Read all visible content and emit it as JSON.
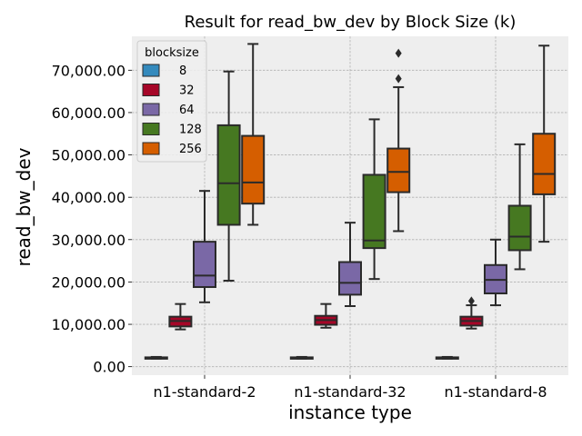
{
  "chart_data": {
    "type": "box",
    "title": "Result for read_bw_dev by Block Size (k)",
    "xlabel": "instance type",
    "ylabel": "read_bw_dev",
    "categories": [
      "n1-standard-2",
      "n1-standard-32",
      "n1-standard-8"
    ],
    "ylim": [
      -2000,
      78000
    ],
    "yticks": [
      0,
      10000,
      20000,
      30000,
      40000,
      50000,
      60000,
      70000
    ],
    "ytick_labels": [
      "0.00",
      "10,000.00",
      "20,000.00",
      "30,000.00",
      "40,000.00",
      "50,000.00",
      "60,000.00",
      "70,000.00"
    ],
    "grid": true,
    "legend": {
      "title": "blocksize",
      "position": "top-left"
    },
    "series": [
      {
        "name": "8",
        "color": "#348ABD",
        "boxes": [
          {
            "min": 1900,
            "q1": 2000,
            "median": 2100,
            "q3": 2200,
            "max": 2300,
            "outliers": []
          },
          {
            "min": 1900,
            "q1": 2000,
            "median": 2100,
            "q3": 2200,
            "max": 2300,
            "outliers": []
          },
          {
            "min": 1900,
            "q1": 2000,
            "median": 2100,
            "q3": 2200,
            "max": 2300,
            "outliers": []
          }
        ]
      },
      {
        "name": "32",
        "color": "#A60628",
        "boxes": [
          {
            "min": 8800,
            "q1": 9500,
            "median": 10800,
            "q3": 11800,
            "max": 14800,
            "outliers": []
          },
          {
            "min": 9200,
            "q1": 9900,
            "median": 11000,
            "q3": 12000,
            "max": 14800,
            "outliers": []
          },
          {
            "min": 9000,
            "q1": 9700,
            "median": 10800,
            "q3": 11800,
            "max": 14500,
            "outliers": [
              15500
            ]
          }
        ]
      },
      {
        "name": "64",
        "color": "#7A68A6",
        "boxes": [
          {
            "min": 15200,
            "q1": 18800,
            "median": 21500,
            "q3": 29500,
            "max": 41500,
            "outliers": []
          },
          {
            "min": 14300,
            "q1": 17000,
            "median": 19800,
            "q3": 24700,
            "max": 34000,
            "outliers": []
          },
          {
            "min": 14500,
            "q1": 17300,
            "median": 20500,
            "q3": 24000,
            "max": 30000,
            "outliers": []
          }
        ]
      },
      {
        "name": "128",
        "color": "#467821",
        "boxes": [
          {
            "min": 20300,
            "q1": 33500,
            "median": 43300,
            "q3": 57000,
            "max": 69700,
            "outliers": []
          },
          {
            "min": 20700,
            "q1": 28000,
            "median": 29800,
            "q3": 45300,
            "max": 58400,
            "outliers": []
          },
          {
            "min": 23000,
            "q1": 27500,
            "median": 30700,
            "q3": 38000,
            "max": 52500,
            "outliers": []
          }
        ]
      },
      {
        "name": "256",
        "color": "#D55E00",
        "boxes": [
          {
            "min": 33500,
            "q1": 38500,
            "median": 43500,
            "q3": 54500,
            "max": 76200,
            "outliers": []
          },
          {
            "min": 32000,
            "q1": 41200,
            "median": 46000,
            "q3": 51500,
            "max": 66000,
            "outliers": [
              68000,
              74000
            ]
          },
          {
            "min": 29500,
            "q1": 40700,
            "median": 45500,
            "q3": 55000,
            "max": 75800,
            "outliers": []
          }
        ]
      }
    ]
  }
}
